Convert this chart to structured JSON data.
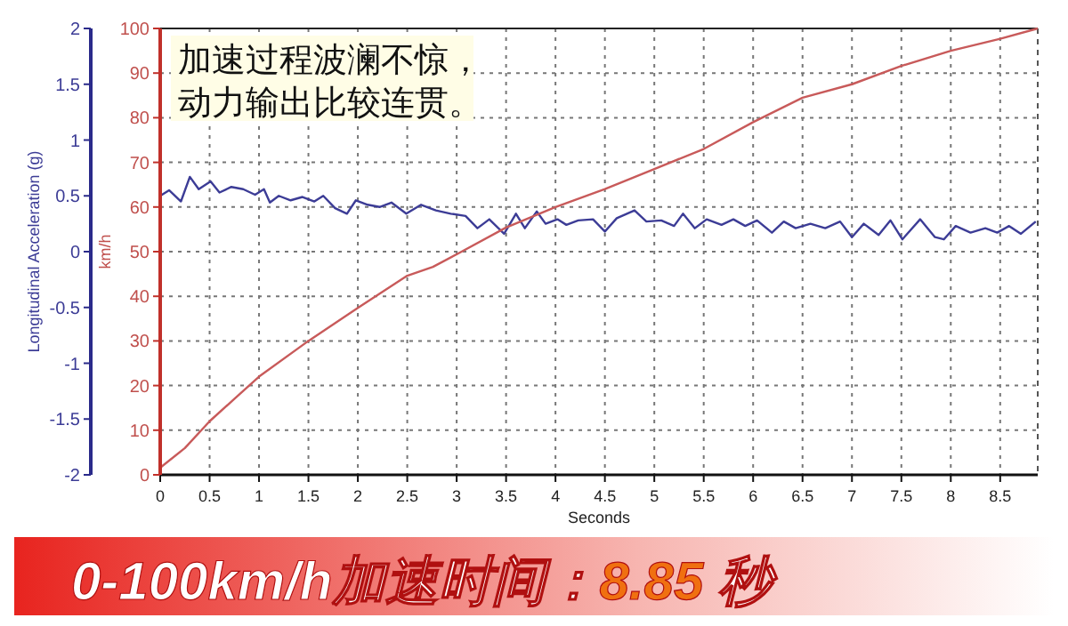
{
  "chart_data": {
    "type": "line",
    "xlabel": "Seconds",
    "ylabel": "Longitudinal Acceleration (g)",
    "y2label": "km/h",
    "xlim": [
      0,
      8.88
    ],
    "xticks": [
      0,
      0.5,
      1,
      1.5,
      2,
      2.5,
      3,
      3.5,
      4,
      4.5,
      5,
      5.5,
      6,
      6.5,
      7,
      7.5,
      8,
      8.5
    ],
    "ylim": [
      -2,
      2
    ],
    "yticks": [
      -2,
      -1.5,
      -1,
      -0.5,
      0,
      0.5,
      1,
      1.5,
      2
    ],
    "y2lim": [
      0,
      100
    ],
    "y2ticks": [
      0,
      10,
      20,
      30,
      40,
      50,
      60,
      70,
      80,
      90,
      100
    ],
    "grid": true,
    "marker": "none",
    "line_style": "solid",
    "series": [
      {
        "color": "#3c3c96",
        "axis": "y",
        "x": [
          0,
          0.09,
          0.21,
          0.3,
          0.39,
          0.51,
          0.6,
          0.72,
          0.84,
          0.96,
          1.05,
          1.11,
          1.2,
          1.32,
          1.44,
          1.56,
          1.65,
          1.77,
          1.89,
          1.98,
          2.1,
          2.22,
          2.34,
          2.49,
          2.64,
          2.79,
          2.94,
          3.09,
          3.21,
          3.33,
          3.48,
          3.6,
          3.69,
          3.81,
          3.9,
          4.02,
          4.11,
          4.23,
          4.38,
          4.5,
          4.62,
          4.8,
          4.92,
          5.07,
          5.2,
          5.29,
          5.41,
          5.53,
          5.68,
          5.8,
          5.92,
          6.04,
          6.19,
          6.31,
          6.43,
          6.58,
          6.73,
          6.88,
          7.0,
          7.12,
          7.27,
          7.39,
          7.51,
          7.69,
          7.84,
          7.93,
          8.05,
          8.2,
          8.35,
          8.47,
          8.59,
          8.71,
          8.86
        ],
        "values": [
          0.5,
          0.55,
          0.45,
          0.67,
          0.56,
          0.63,
          0.53,
          0.58,
          0.56,
          0.51,
          0.56,
          0.44,
          0.5,
          0.46,
          0.49,
          0.45,
          0.5,
          0.39,
          0.34,
          0.46,
          0.42,
          0.4,
          0.44,
          0.34,
          0.42,
          0.37,
          0.34,
          0.32,
          0.21,
          0.29,
          0.16,
          0.34,
          0.21,
          0.36,
          0.25,
          0.29,
          0.24,
          0.28,
          0.29,
          0.18,
          0.3,
          0.37,
          0.27,
          0.28,
          0.23,
          0.34,
          0.21,
          0.29,
          0.24,
          0.29,
          0.23,
          0.28,
          0.17,
          0.27,
          0.21,
          0.25,
          0.21,
          0.27,
          0.13,
          0.25,
          0.15,
          0.28,
          0.11,
          0.29,
          0.13,
          0.11,
          0.23,
          0.17,
          0.21,
          0.17,
          0.23,
          0.16,
          0.27
        ]
      },
      {
        "color": "#c85a5a",
        "axis": "y2",
        "x": [
          0,
          0.25,
          0.5,
          0.75,
          1,
          1.5,
          2,
          2.5,
          2.76,
          3,
          3.5,
          4,
          4.5,
          5,
          5.5,
          6,
          6.5,
          7,
          7.5,
          8,
          8.5,
          8.88
        ],
        "values": [
          1.6,
          6,
          12,
          17,
          22,
          30,
          37.4,
          44.6,
          46.6,
          49.4,
          55.4,
          60,
          64,
          68.5,
          73,
          79,
          84.5,
          87.5,
          91.6,
          95,
          97.7,
          100
        ]
      }
    ],
    "annotations": [
      "加速过程波澜不惊，",
      "动力输出比较连贯。",
      "0-100km/h加速时间：8.85 秒"
    ]
  }
}
